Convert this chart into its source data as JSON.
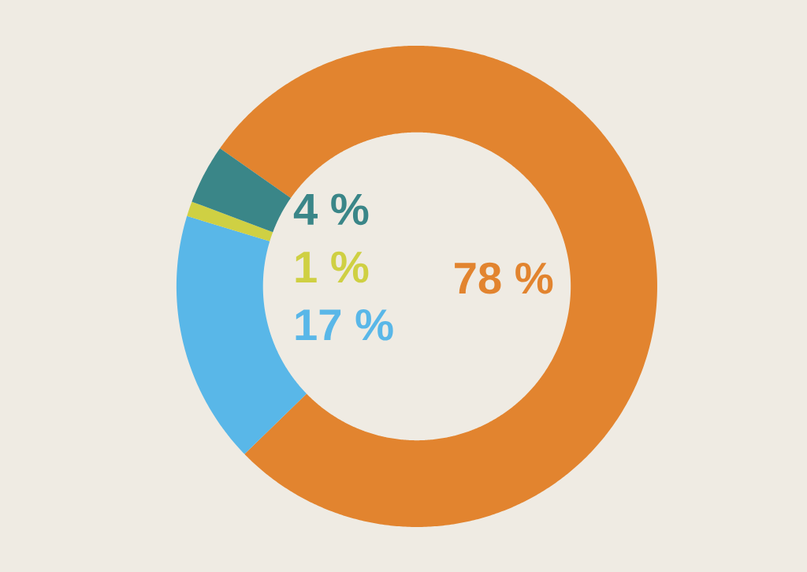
{
  "chart_data": {
    "type": "donut",
    "categories": [
      null,
      null,
      null,
      null
    ],
    "values": [
      78,
      17,
      1,
      4
    ],
    "colors": [
      "#e2842f",
      "#59b7e8",
      "#cfd043",
      "#3a8688"
    ],
    "value_labels": [
      "78 %",
      "17 %",
      "1 %",
      "4 %"
    ]
  }
}
